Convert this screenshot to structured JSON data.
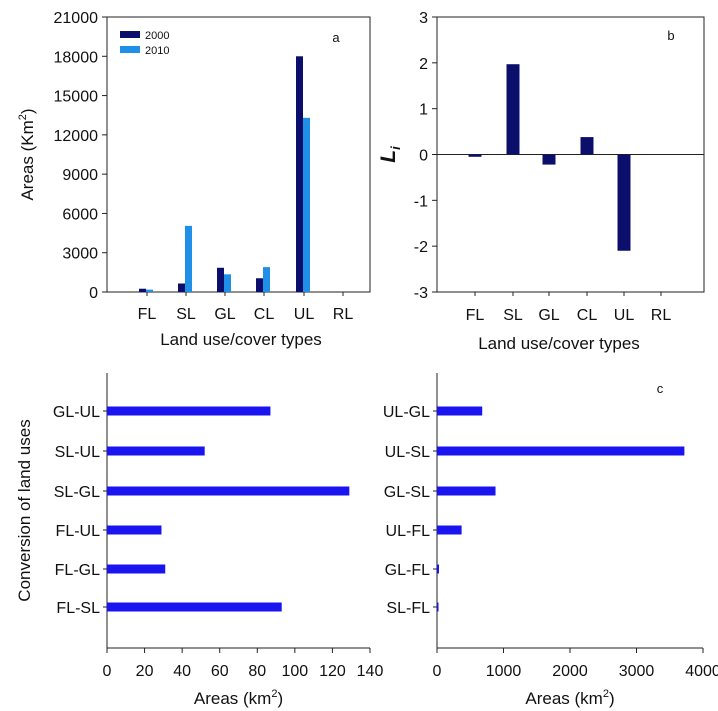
{
  "colors": {
    "dark_navy": "#0b0f6b",
    "light_blue": "#1f8fe8",
    "bright_blue": "#1a14f0"
  },
  "chart_data": [
    {
      "id": "a",
      "type": "bar",
      "panel_label": "a",
      "categories": [
        "FL",
        "SL",
        "GL",
        "CL",
        "UL",
        "RL"
      ],
      "series": [
        {
          "name": "2000",
          "color": "#0b0f6b",
          "values": [
            250,
            650,
            1850,
            1050,
            18000,
            0
          ]
        },
        {
          "name": "2010",
          "color": "#1f8fe8",
          "values": [
            180,
            5050,
            1350,
            1900,
            13300,
            0
          ]
        }
      ],
      "ylabel": "Areas (Km",
      "ylabel_sup": "2",
      "ylabel_close": ")",
      "xlabel": "Land use/cover types",
      "ylim": [
        0,
        21000
      ],
      "yticks": [
        "0",
        "3000",
        "6000",
        "9000",
        "12000",
        "15000",
        "18000",
        "21000"
      ],
      "legend_position": "top-left"
    },
    {
      "id": "b",
      "type": "bar",
      "panel_label": "b",
      "categories": [
        "FL",
        "SL",
        "GL",
        "CL",
        "UL",
        "RL"
      ],
      "series": [
        {
          "color": "#0b0f6b",
          "values": [
            -0.05,
            1.97,
            -0.22,
            0.38,
            -2.1,
            0
          ]
        }
      ],
      "ylabel": "L",
      "ylabel_sub": "i",
      "xlabel": "Land use/cover types",
      "ylim": [
        -3,
        3
      ],
      "yticks": [
        "-3",
        "-2",
        "-1",
        "0",
        "1",
        "2",
        "3"
      ]
    },
    {
      "id": "c-left",
      "type": "bar",
      "orientation": "horizontal",
      "categories": [
        "GL-UL",
        "SL-UL",
        "SL-GL",
        "FL-UL",
        "FL-GL",
        "FL-SL"
      ],
      "values": [
        87,
        52,
        129,
        29,
        31,
        93
      ],
      "color": "#1a14f0",
      "ylabel": "Conversion of land uses",
      "xlabel": "Areas (km",
      "xlabel_sup": "2",
      "xlabel_close": ")",
      "xlim": [
        0,
        140
      ],
      "xticks": [
        "0",
        "20",
        "40",
        "60",
        "80",
        "100",
        "120",
        "140"
      ]
    },
    {
      "id": "c-right",
      "type": "bar",
      "orientation": "horizontal",
      "panel_label": "c",
      "categories": [
        "UL-GL",
        "UL-SL",
        "GL-SL",
        "UL-FL",
        "GL-FL",
        "SL-FL"
      ],
      "values": [
        680,
        3720,
        880,
        370,
        30,
        15
      ],
      "color": "#1a14f0",
      "xlabel": "Areas (km",
      "xlabel_sup": "2",
      "xlabel_close": ")",
      "xlim": [
        0,
        4000
      ],
      "xticks": [
        "0",
        "1000",
        "2000",
        "3000",
        "4000"
      ]
    }
  ]
}
